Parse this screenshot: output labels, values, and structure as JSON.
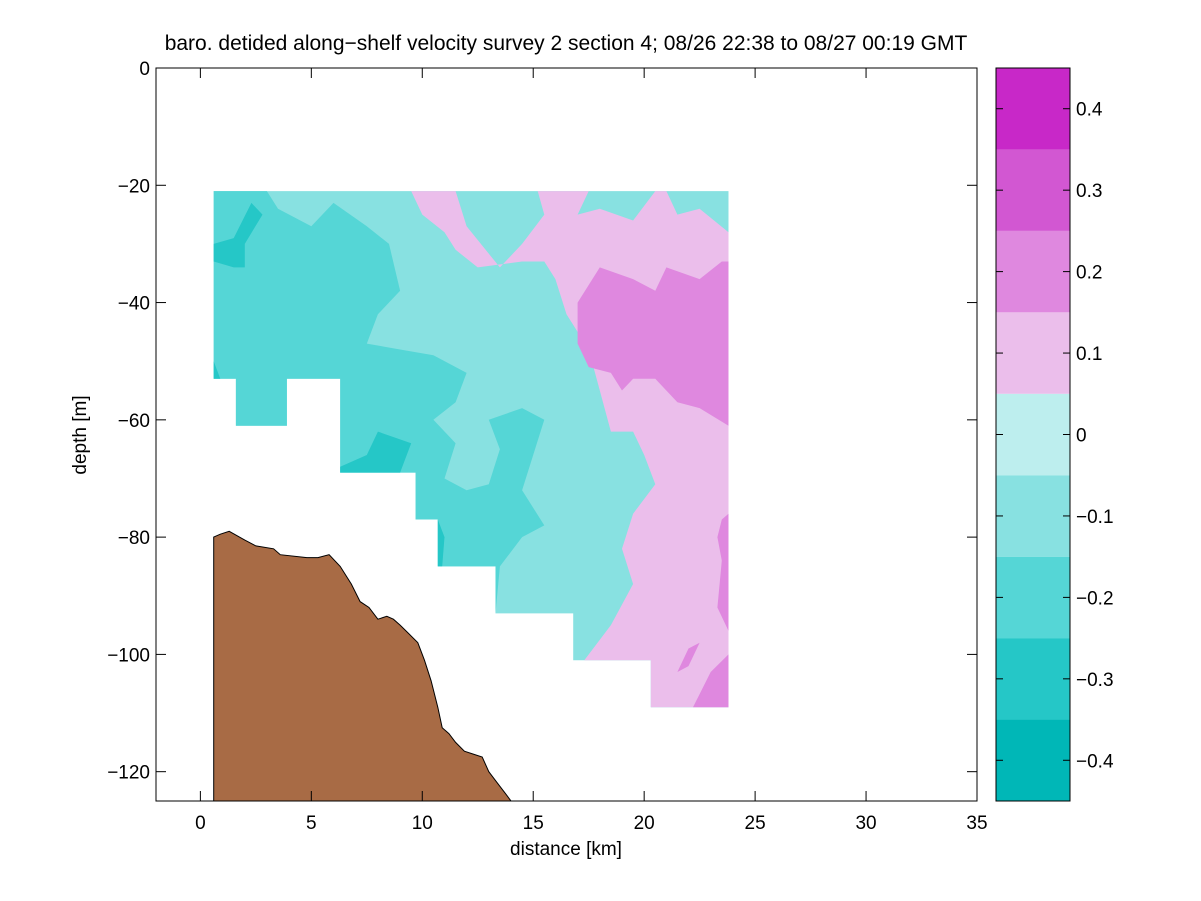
{
  "chart_data": {
    "type": "heatmap",
    "title": "baro. detided along−shelf velocity survey 2 section 4; 08/26 22:38 to 08/27 00:19 GMT",
    "xlabel": "distance [km]",
    "ylabel": "depth [m]",
    "xlim": [
      -2,
      35
    ],
    "ylim": [
      -125,
      0
    ],
    "xticks": [
      0,
      5,
      10,
      15,
      20,
      25,
      30,
      35
    ],
    "yticks": [
      0,
      -20,
      -40,
      -60,
      -80,
      -100,
      -120
    ],
    "xtick_labels": [
      "0",
      "5",
      "10",
      "15",
      "20",
      "25",
      "30",
      "35"
    ],
    "ytick_labels": [
      "0",
      "−20",
      "−40",
      "−60",
      "−80",
      "−100",
      "−120"
    ],
    "colorbar": {
      "range": [
        -0.45,
        0.45
      ],
      "levels": [
        -0.45,
        -0.35,
        -0.25,
        -0.15,
        -0.05,
        0.05,
        0.15,
        0.25,
        0.35,
        0.45
      ],
      "colors": [
        "#00b7b7",
        "#25c7c7",
        "#55d6d6",
        "#88e1e1",
        "#bdeeee",
        "#ebbeeb",
        "#df88df",
        "#d257d2",
        "#c828c8",
        "#bd00bd"
      ],
      "ticks": [
        -0.4,
        -0.3,
        -0.2,
        -0.1,
        0,
        0.1,
        0.2,
        0.3,
        0.4
      ],
      "tick_labels": [
        "−0.4",
        "−0.3",
        "−0.2",
        "−0.1",
        "0",
        "0.1",
        "0.2",
        "0.3",
        "0.4"
      ]
    },
    "grid": false,
    "bottom_color": "#a86b45",
    "bottom_profile": [
      [
        0.6,
        -125
      ],
      [
        0.6,
        -80
      ],
      [
        0.9,
        -79.5
      ],
      [
        1.3,
        -79
      ],
      [
        2.0,
        -80.5
      ],
      [
        2.5,
        -81.5
      ],
      [
        3.3,
        -82
      ],
      [
        3.6,
        -83
      ],
      [
        4.8,
        -83.5
      ],
      [
        5.3,
        -83.5
      ],
      [
        5.8,
        -83
      ],
      [
        6.3,
        -85
      ],
      [
        6.8,
        -88
      ],
      [
        7.2,
        -91
      ],
      [
        7.6,
        -92
      ],
      [
        8.0,
        -94
      ],
      [
        8.4,
        -93.5
      ],
      [
        8.7,
        -94
      ],
      [
        9.0,
        -95
      ],
      [
        9.4,
        -96.5
      ],
      [
        9.8,
        -98
      ],
      [
        10.1,
        -101
      ],
      [
        10.4,
        -104.5
      ],
      [
        10.7,
        -109
      ],
      [
        10.9,
        -112.5
      ],
      [
        11.2,
        -113.5
      ],
      [
        11.5,
        -115
      ],
      [
        11.9,
        -116.5
      ],
      [
        12.3,
        -117
      ],
      [
        12.7,
        -117.5
      ],
      [
        13.0,
        -120
      ],
      [
        13.4,
        -122
      ],
      [
        13.8,
        -124
      ],
      [
        14.0,
        -125
      ]
    ],
    "data_mask": [
      [
        0.6,
        -21
      ],
      [
        23.8,
        -21
      ],
      [
        23.8,
        -109
      ],
      [
        20.3,
        -109
      ],
      [
        20.3,
        -101
      ],
      [
        16.8,
        -101
      ],
      [
        16.8,
        -93
      ],
      [
        13.3,
        -93
      ],
      [
        13.3,
        -85
      ],
      [
        10.7,
        -85
      ],
      [
        10.7,
        -77
      ],
      [
        9.7,
        -77
      ],
      [
        9.7,
        -69
      ],
      [
        6.3,
        -69
      ],
      [
        6.3,
        -53
      ],
      [
        3.9,
        -53
      ],
      [
        3.9,
        -61
      ],
      [
        1.6,
        -61
      ],
      [
        1.6,
        -53
      ],
      [
        0.6,
        -53
      ]
    ],
    "regions": [
      {
        "value": -0.1,
        "polygon": [
          [
            0.6,
            -21
          ],
          [
            23.8,
            -21
          ],
          [
            23.8,
            -109
          ],
          [
            20.3,
            -109
          ],
          [
            20.3,
            -101
          ],
          [
            16.8,
            -101
          ],
          [
            16.8,
            -93
          ],
          [
            13.3,
            -93
          ],
          [
            13.3,
            -85
          ],
          [
            10.7,
            -85
          ],
          [
            10.7,
            -77
          ],
          [
            9.7,
            -77
          ],
          [
            9.7,
            -69
          ],
          [
            6.3,
            -69
          ],
          [
            6.3,
            -53
          ],
          [
            3.9,
            -53
          ],
          [
            3.9,
            -61
          ],
          [
            1.6,
            -61
          ],
          [
            1.6,
            -53
          ],
          [
            0.6,
            -53
          ]
        ]
      },
      {
        "value": -0.2,
        "polygon": [
          [
            0.6,
            -21
          ],
          [
            3.0,
            -21
          ],
          [
            3.5,
            -24
          ],
          [
            5.0,
            -27
          ],
          [
            6.0,
            -23
          ],
          [
            7.5,
            -27
          ],
          [
            8.5,
            -30
          ],
          [
            9.0,
            -38
          ],
          [
            8.0,
            -42
          ],
          [
            7.5,
            -47
          ],
          [
            9.0,
            -48
          ],
          [
            10.5,
            -49
          ],
          [
            12.0,
            -52
          ],
          [
            11.5,
            -57
          ],
          [
            10.5,
            -60
          ],
          [
            11.5,
            -64
          ],
          [
            11.0,
            -70
          ],
          [
            12.0,
            -72
          ],
          [
            13.0,
            -71
          ],
          [
            13.5,
            -65
          ],
          [
            13.0,
            -60
          ],
          [
            14.5,
            -58
          ],
          [
            15.5,
            -60
          ],
          [
            15.0,
            -66
          ],
          [
            14.5,
            -72
          ],
          [
            15.5,
            -78
          ],
          [
            14.5,
            -80
          ],
          [
            13.5,
            -85
          ],
          [
            13.3,
            -93
          ],
          [
            13.3,
            -85
          ],
          [
            10.7,
            -85
          ],
          [
            10.7,
            -77
          ],
          [
            9.7,
            -77
          ],
          [
            9.7,
            -69
          ],
          [
            6.3,
            -69
          ],
          [
            6.3,
            -53
          ],
          [
            3.9,
            -53
          ],
          [
            3.9,
            -61
          ],
          [
            1.6,
            -61
          ],
          [
            1.6,
            -53
          ],
          [
            0.6,
            -53
          ]
        ]
      },
      {
        "value": -0.3,
        "polygon": [
          [
            0.6,
            -30
          ],
          [
            1.5,
            -29
          ],
          [
            2.3,
            -23
          ],
          [
            2.8,
            -25
          ],
          [
            2.0,
            -30
          ],
          [
            2.0,
            -34
          ],
          [
            1.5,
            -34
          ],
          [
            0.6,
            -33
          ]
        ]
      },
      {
        "value": -0.3,
        "polygon": [
          [
            6.3,
            -68
          ],
          [
            7.5,
            -66
          ],
          [
            8.0,
            -62
          ],
          [
            9.5,
            -64
          ],
          [
            9.0,
            -69
          ],
          [
            6.3,
            -69
          ]
        ]
      },
      {
        "value": -0.3,
        "polygon": [
          [
            10.7,
            -77
          ],
          [
            11.0,
            -80
          ],
          [
            10.9,
            -85
          ],
          [
            10.7,
            -85
          ]
        ]
      },
      {
        "value": -0.3,
        "polygon": [
          [
            0.6,
            -50
          ],
          [
            0.9,
            -53
          ],
          [
            0.6,
            -53
          ]
        ]
      },
      {
        "value": 0.05,
        "polygon": [
          [
            9.5,
            -21
          ],
          [
            11.5,
            -21
          ],
          [
            12.0,
            -27
          ],
          [
            13.5,
            -34
          ],
          [
            14.5,
            -30
          ],
          [
            15.5,
            -25
          ],
          [
            15.2,
            -21
          ],
          [
            17.5,
            -21
          ],
          [
            17.0,
            -25
          ],
          [
            18.0,
            -24
          ],
          [
            19.5,
            -26
          ],
          [
            20.5,
            -21
          ],
          [
            21.0,
            -21
          ],
          [
            21.5,
            -25
          ],
          [
            22.5,
            -24
          ],
          [
            23.8,
            -28
          ],
          [
            23.8,
            -109
          ],
          [
            20.3,
            -109
          ],
          [
            20.3,
            -101
          ],
          [
            17.3,
            -101
          ],
          [
            18.5,
            -95
          ],
          [
            19.5,
            -88
          ],
          [
            19.0,
            -82
          ],
          [
            19.5,
            -76
          ],
          [
            20.5,
            -71
          ],
          [
            20.0,
            -66
          ],
          [
            19.5,
            -62
          ],
          [
            18.5,
            -62
          ],
          [
            18.0,
            -55
          ],
          [
            17.5,
            -48
          ],
          [
            16.5,
            -42
          ],
          [
            16.0,
            -36
          ],
          [
            15.5,
            -33
          ],
          [
            14.5,
            -33
          ],
          [
            12.5,
            -34
          ],
          [
            11.5,
            -31
          ],
          [
            11.0,
            -28
          ],
          [
            10.0,
            -25
          ]
        ]
      },
      {
        "value": 0.15,
        "polygon": [
          [
            17.0,
            -40
          ],
          [
            18.0,
            -34
          ],
          [
            19.5,
            -36
          ],
          [
            20.5,
            -38
          ],
          [
            21.0,
            -34
          ],
          [
            22.5,
            -36
          ],
          [
            23.5,
            -33
          ],
          [
            23.8,
            -33
          ],
          [
            23.8,
            -61
          ],
          [
            22.5,
            -58
          ],
          [
            21.5,
            -57
          ],
          [
            20.5,
            -53
          ],
          [
            19.5,
            -53
          ],
          [
            19.0,
            -55
          ],
          [
            18.5,
            -52
          ],
          [
            17.5,
            -51
          ],
          [
            17.0,
            -47
          ]
        ]
      },
      {
        "value": 0.15,
        "polygon": [
          [
            23.8,
            -76
          ],
          [
            23.5,
            -77
          ],
          [
            23.3,
            -80
          ],
          [
            23.5,
            -84
          ],
          [
            23.3,
            -92
          ],
          [
            23.8,
            -96
          ]
        ]
      },
      {
        "value": 0.15,
        "polygon": [
          [
            21.5,
            -103
          ],
          [
            22.0,
            -99
          ],
          [
            22.5,
            -98
          ],
          [
            22.0,
            -102
          ]
        ]
      },
      {
        "value": 0.15,
        "polygon": [
          [
            22.2,
            -109
          ],
          [
            23.0,
            -103
          ],
          [
            23.8,
            -100
          ],
          [
            23.8,
            -109
          ]
        ]
      }
    ]
  }
}
